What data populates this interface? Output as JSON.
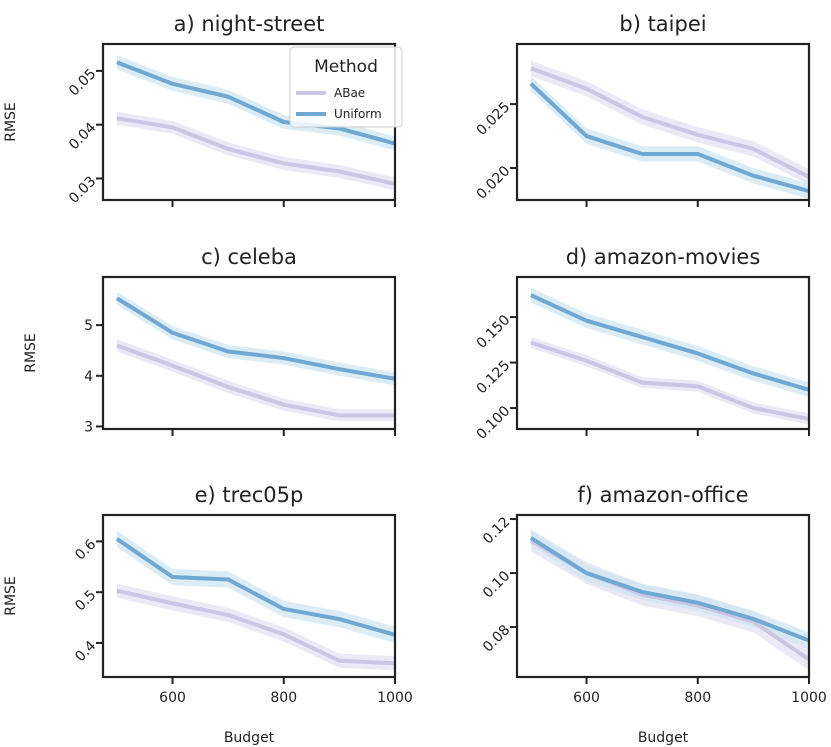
{
  "figure": {
    "legend": {
      "title": "Method",
      "entries": [
        {
          "name": "ABae",
          "color": "#cbc6e3"
        },
        {
          "name": "Uniform",
          "color": "#6fa8d2"
        }
      ]
    },
    "band_colors": {
      "ABae": "#e4e1f1",
      "Uniform": "#cfe5f2"
    }
  },
  "chart_data": [
    {
      "type": "line",
      "title": "a) night-street",
      "xlabel": "",
      "ylabel": "RMSE",
      "x": [
        500,
        600,
        700,
        800,
        900,
        1000
      ],
      "xlim": [
        475,
        1000
      ],
      "xticks": [
        600,
        800,
        1000
      ],
      "xtick_labels": [],
      "ylim": [
        0.026,
        0.055
      ],
      "yticks": [
        0.03,
        0.04,
        0.05
      ],
      "ytick_labels": [
        "0.03",
        "0.04",
        "0.05"
      ],
      "tick_rotation": -45,
      "series": [
        {
          "name": "ABae",
          "values": [
            0.0412,
            0.0395,
            0.0355,
            0.0328,
            0.0313,
            0.029
          ],
          "band": 0.0012
        },
        {
          "name": "Uniform",
          "values": [
            0.0516,
            0.0476,
            0.0452,
            0.0405,
            0.0393,
            0.0365
          ],
          "band": 0.0013
        }
      ]
    },
    {
      "type": "line",
      "title": "b) taipei",
      "xlabel": "",
      "ylabel": "",
      "x": [
        500,
        600,
        700,
        800,
        900,
        1000
      ],
      "xlim": [
        475,
        1000
      ],
      "xticks": [
        600,
        800,
        1000
      ],
      "xtick_labels": [],
      "ylim": [
        0.0175,
        0.0297
      ],
      "yticks": [
        0.02,
        0.025
      ],
      "ytick_labels": [
        "0.020",
        "0.025"
      ],
      "tick_rotation": -45,
      "series": [
        {
          "name": "ABae",
          "values": [
            0.0278,
            0.0262,
            0.024,
            0.0226,
            0.0215,
            0.0193
          ],
          "band": 0.0006
        },
        {
          "name": "Uniform",
          "values": [
            0.0266,
            0.0225,
            0.0211,
            0.0211,
            0.0194,
            0.0182
          ],
          "band": 0.0006
        }
      ]
    },
    {
      "type": "line",
      "title": "c) celeba",
      "xlabel": "",
      "ylabel": "RMSE",
      "x": [
        500,
        600,
        700,
        800,
        900,
        1000
      ],
      "xlim": [
        475,
        1000
      ],
      "xticks": [
        600,
        800,
        1000
      ],
      "xtick_labels": [],
      "ylim": [
        2.95,
        5.95
      ],
      "yticks": [
        3,
        4,
        5
      ],
      "ytick_labels": [
        "3",
        "4",
        "5"
      ],
      "tick_rotation": 0,
      "series": [
        {
          "name": "ABae",
          "values": [
            4.6,
            4.2,
            3.78,
            3.43,
            3.22,
            3.22
          ],
          "band": 0.12
        },
        {
          "name": "Uniform",
          "values": [
            5.53,
            4.85,
            4.48,
            4.35,
            4.13,
            3.94
          ],
          "band": 0.13
        }
      ]
    },
    {
      "type": "line",
      "title": "d) amazon-movies",
      "xlabel": "",
      "ylabel": "",
      "x": [
        500,
        600,
        700,
        800,
        900,
        1000
      ],
      "xlim": [
        475,
        1000
      ],
      "xticks": [
        600,
        800,
        1000
      ],
      "xtick_labels": [],
      "ylim": [
        0.0885,
        0.172
      ],
      "yticks": [
        0.1,
        0.125,
        0.15
      ],
      "ytick_labels": [
        "0.100",
        "0.125",
        "0.150"
      ],
      "tick_rotation": -45,
      "series": [
        {
          "name": "ABae",
          "values": [
            0.136,
            0.126,
            0.114,
            0.112,
            0.1,
            0.094
          ],
          "band": 0.003
        },
        {
          "name": "Uniform",
          "values": [
            0.162,
            0.148,
            0.139,
            0.13,
            0.119,
            0.11
          ],
          "band": 0.004
        }
      ]
    },
    {
      "type": "line",
      "title": "e) trec05p",
      "xlabel": "Budget",
      "ylabel": "RMSE",
      "x": [
        500,
        600,
        700,
        800,
        900,
        1000
      ],
      "xlim": [
        475,
        1000
      ],
      "xticks": [
        600,
        800,
        1000
      ],
      "xtick_labels": [
        "600",
        "800",
        "1000"
      ],
      "ylim": [
        0.333,
        0.652
      ],
      "yticks": [
        0.4,
        0.5,
        0.6
      ],
      "ytick_labels": [
        "0.4",
        "0.5",
        "0.6"
      ],
      "tick_rotation": -45,
      "series": [
        {
          "name": "ABae",
          "values": [
            0.503,
            0.478,
            0.455,
            0.417,
            0.365,
            0.36
          ],
          "band": 0.014
        },
        {
          "name": "Uniform",
          "values": [
            0.605,
            0.53,
            0.525,
            0.467,
            0.447,
            0.416
          ],
          "band": 0.016
        }
      ]
    },
    {
      "type": "line",
      "title": "f) amazon-office",
      "xlabel": "Budget",
      "ylabel": "",
      "x": [
        500,
        600,
        700,
        800,
        900,
        1000
      ],
      "xlim": [
        475,
        1000
      ],
      "xticks": [
        600,
        800,
        1000
      ],
      "xtick_labels": [
        "600",
        "800",
        "1000"
      ],
      "ylim": [
        0.0615,
        0.1215
      ],
      "yticks": [
        0.08,
        0.1,
        0.12
      ],
      "ytick_labels": [
        "0.08",
        "0.10",
        "0.12"
      ],
      "tick_rotation": -45,
      "series": [
        {
          "name": "ABae",
          "values": [
            0.112,
            0.1,
            0.092,
            0.088,
            0.082,
            0.068
          ],
          "band": 0.004
        },
        {
          "name": "Uniform",
          "values": [
            0.113,
            0.1,
            0.093,
            0.089,
            0.083,
            0.075
          ],
          "band": 0.003
        }
      ]
    }
  ]
}
